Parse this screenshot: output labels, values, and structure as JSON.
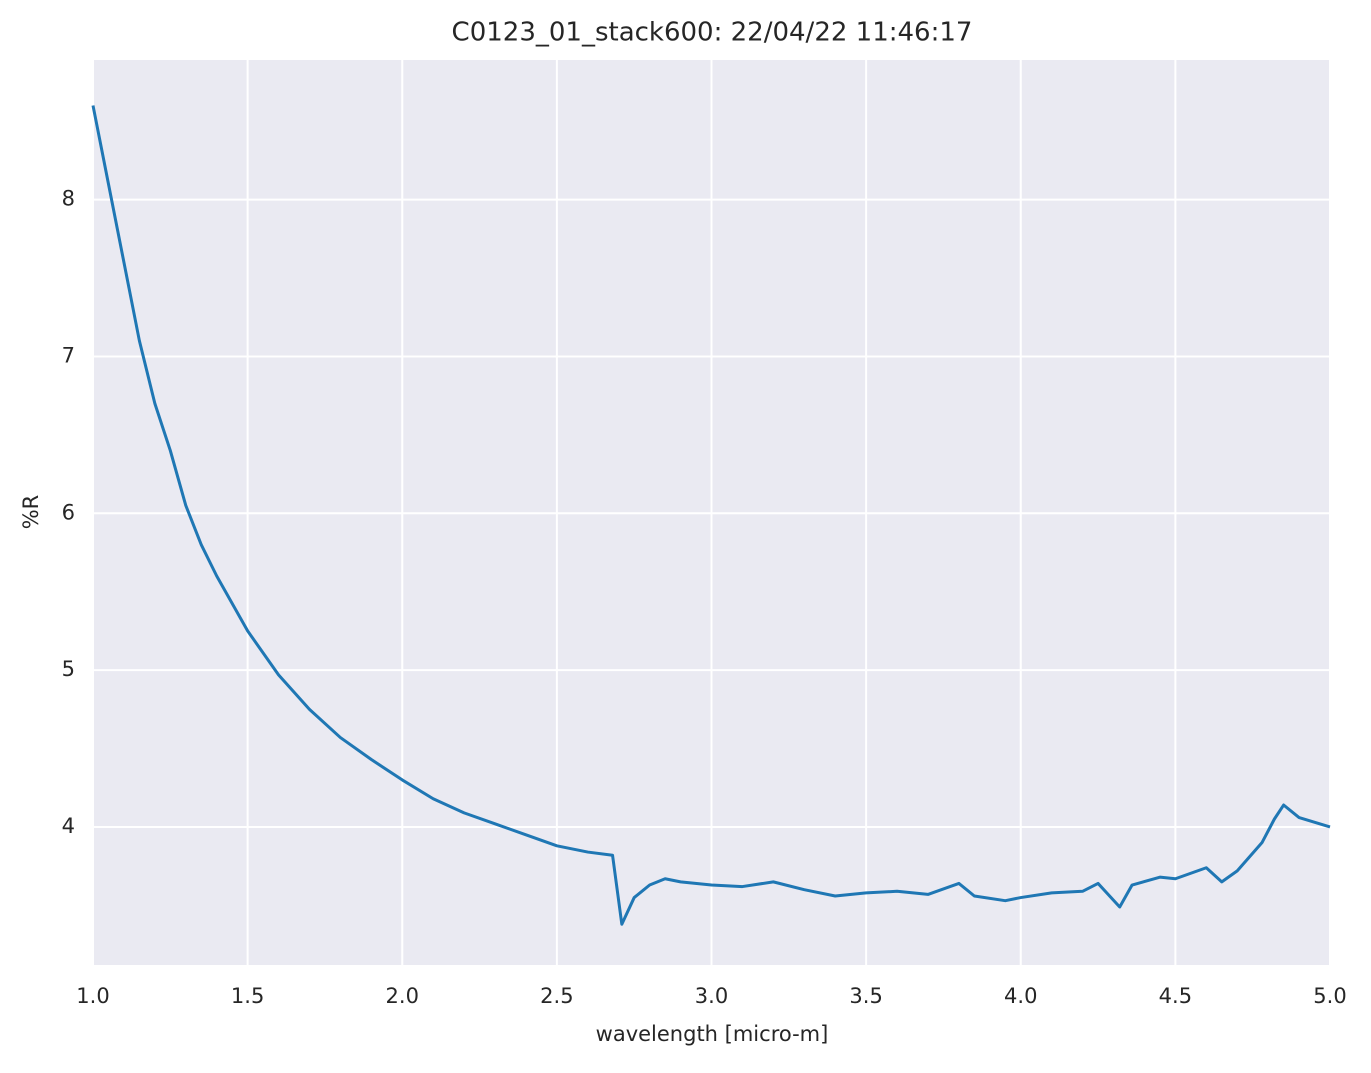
{
  "chart_data": {
    "type": "line",
    "title": "C0123_01_stack600:  22/04/22 11:46:17",
    "xlabel": "wavelength [micro-m]",
    "ylabel": "%R",
    "x": [
      1.0,
      1.05,
      1.1,
      1.15,
      1.2,
      1.25,
      1.3,
      1.35,
      1.4,
      1.5,
      1.6,
      1.7,
      1.8,
      1.9,
      2.0,
      2.1,
      2.2,
      2.3,
      2.4,
      2.5,
      2.6,
      2.68,
      2.71,
      2.75,
      2.8,
      2.85,
      2.9,
      3.0,
      3.1,
      3.2,
      3.3,
      3.4,
      3.5,
      3.6,
      3.7,
      3.8,
      3.85,
      3.95,
      4.0,
      4.1,
      4.2,
      4.25,
      4.32,
      4.36,
      4.45,
      4.5,
      4.6,
      4.65,
      4.7,
      4.78,
      4.82,
      4.85,
      4.9,
      5.0
    ],
    "series": [
      {
        "color": "#1f77b4",
        "values": [
          8.6,
          8.1,
          7.6,
          7.1,
          6.7,
          6.4,
          6.05,
          5.8,
          5.6,
          5.25,
          4.97,
          4.75,
          4.57,
          4.43,
          4.3,
          4.18,
          4.09,
          4.02,
          3.95,
          3.88,
          3.84,
          3.82,
          3.38,
          3.55,
          3.63,
          3.67,
          3.65,
          3.63,
          3.62,
          3.65,
          3.6,
          3.56,
          3.58,
          3.59,
          3.57,
          3.64,
          3.56,
          3.53,
          3.55,
          3.58,
          3.59,
          3.64,
          3.49,
          3.63,
          3.68,
          3.67,
          3.74,
          3.65,
          3.72,
          3.9,
          4.05,
          4.14,
          4.06,
          4.0
        ]
      }
    ],
    "xlim": [
      1.0,
      5.0
    ],
    "xticks": [
      {
        "value": 1,
        "label": "1.0"
      },
      1.5,
      {
        "value": 2,
        "label": "2.0"
      },
      2.5,
      {
        "value": 3,
        "label": "3.0"
      },
      3.5,
      {
        "value": 4,
        "label": "4.0"
      },
      4.5,
      {
        "value": 5,
        "label": "5.0"
      }
    ],
    "ylim": [
      3.12,
      8.89
    ],
    "yticks": [
      4,
      5,
      6,
      7,
      8
    ],
    "grid": true,
    "background": "#eaeaf2"
  }
}
